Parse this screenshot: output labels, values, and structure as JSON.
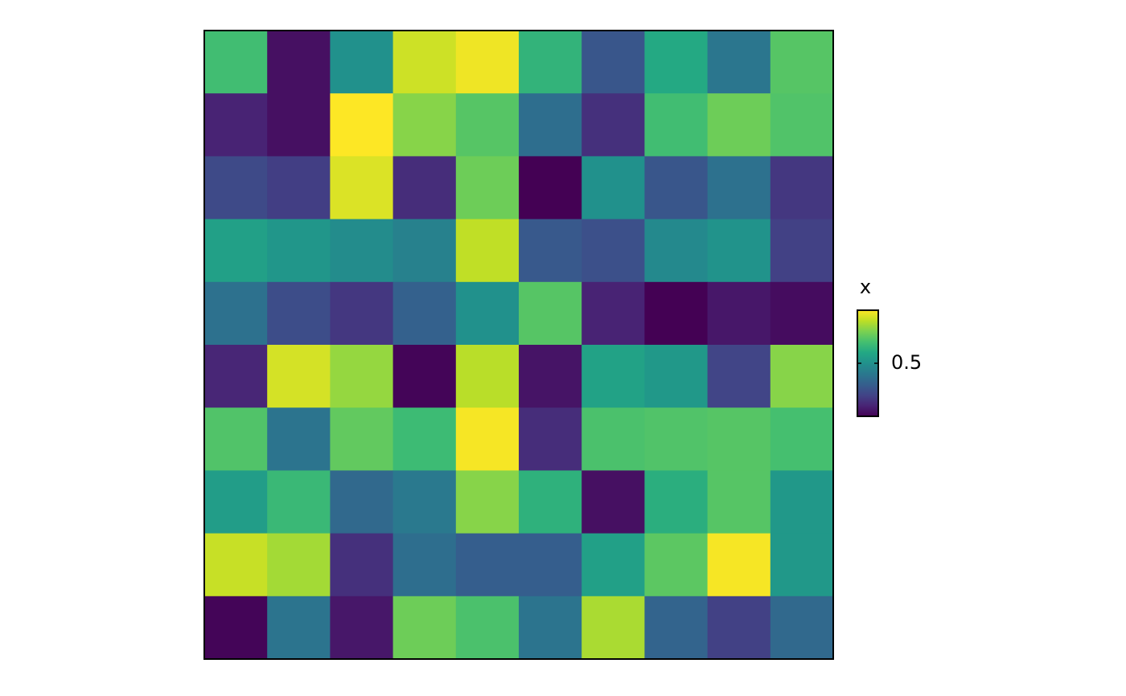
{
  "chart_data": {
    "type": "heatmap",
    "colormap": "viridis",
    "z": [
      [
        0.68,
        0.07,
        0.5,
        0.9,
        0.95,
        0.64,
        0.28,
        0.6,
        0.4,
        0.72
      ],
      [
        0.12,
        0.07,
        0.97,
        0.8,
        0.72,
        0.37,
        0.16,
        0.68,
        0.76,
        0.71
      ],
      [
        0.24,
        0.2,
        0.92,
        0.15,
        0.76,
        0.03,
        0.5,
        0.28,
        0.38,
        0.18
      ],
      [
        0.56,
        0.52,
        0.48,
        0.44,
        0.88,
        0.29,
        0.26,
        0.47,
        0.51,
        0.21
      ],
      [
        0.38,
        0.25,
        0.18,
        0.32,
        0.5,
        0.72,
        0.12,
        0.03,
        0.09,
        0.06
      ],
      [
        0.13,
        0.91,
        0.82,
        0.04,
        0.87,
        0.08,
        0.57,
        0.53,
        0.22,
        0.8
      ],
      [
        0.71,
        0.39,
        0.74,
        0.67,
        0.96,
        0.15,
        0.7,
        0.71,
        0.72,
        0.69
      ],
      [
        0.55,
        0.66,
        0.35,
        0.41,
        0.8,
        0.63,
        0.07,
        0.62,
        0.72,
        0.53
      ],
      [
        0.89,
        0.84,
        0.16,
        0.37,
        0.31,
        0.31,
        0.56,
        0.73,
        0.96,
        0.53
      ],
      [
        0.04,
        0.39,
        0.09,
        0.76,
        0.7,
        0.39,
        0.85,
        0.33,
        0.21,
        0.35
      ]
    ],
    "zlim": [
      0.03,
      0.97
    ],
    "zticks": [
      0.5
    ],
    "colorbar_title": "x"
  }
}
